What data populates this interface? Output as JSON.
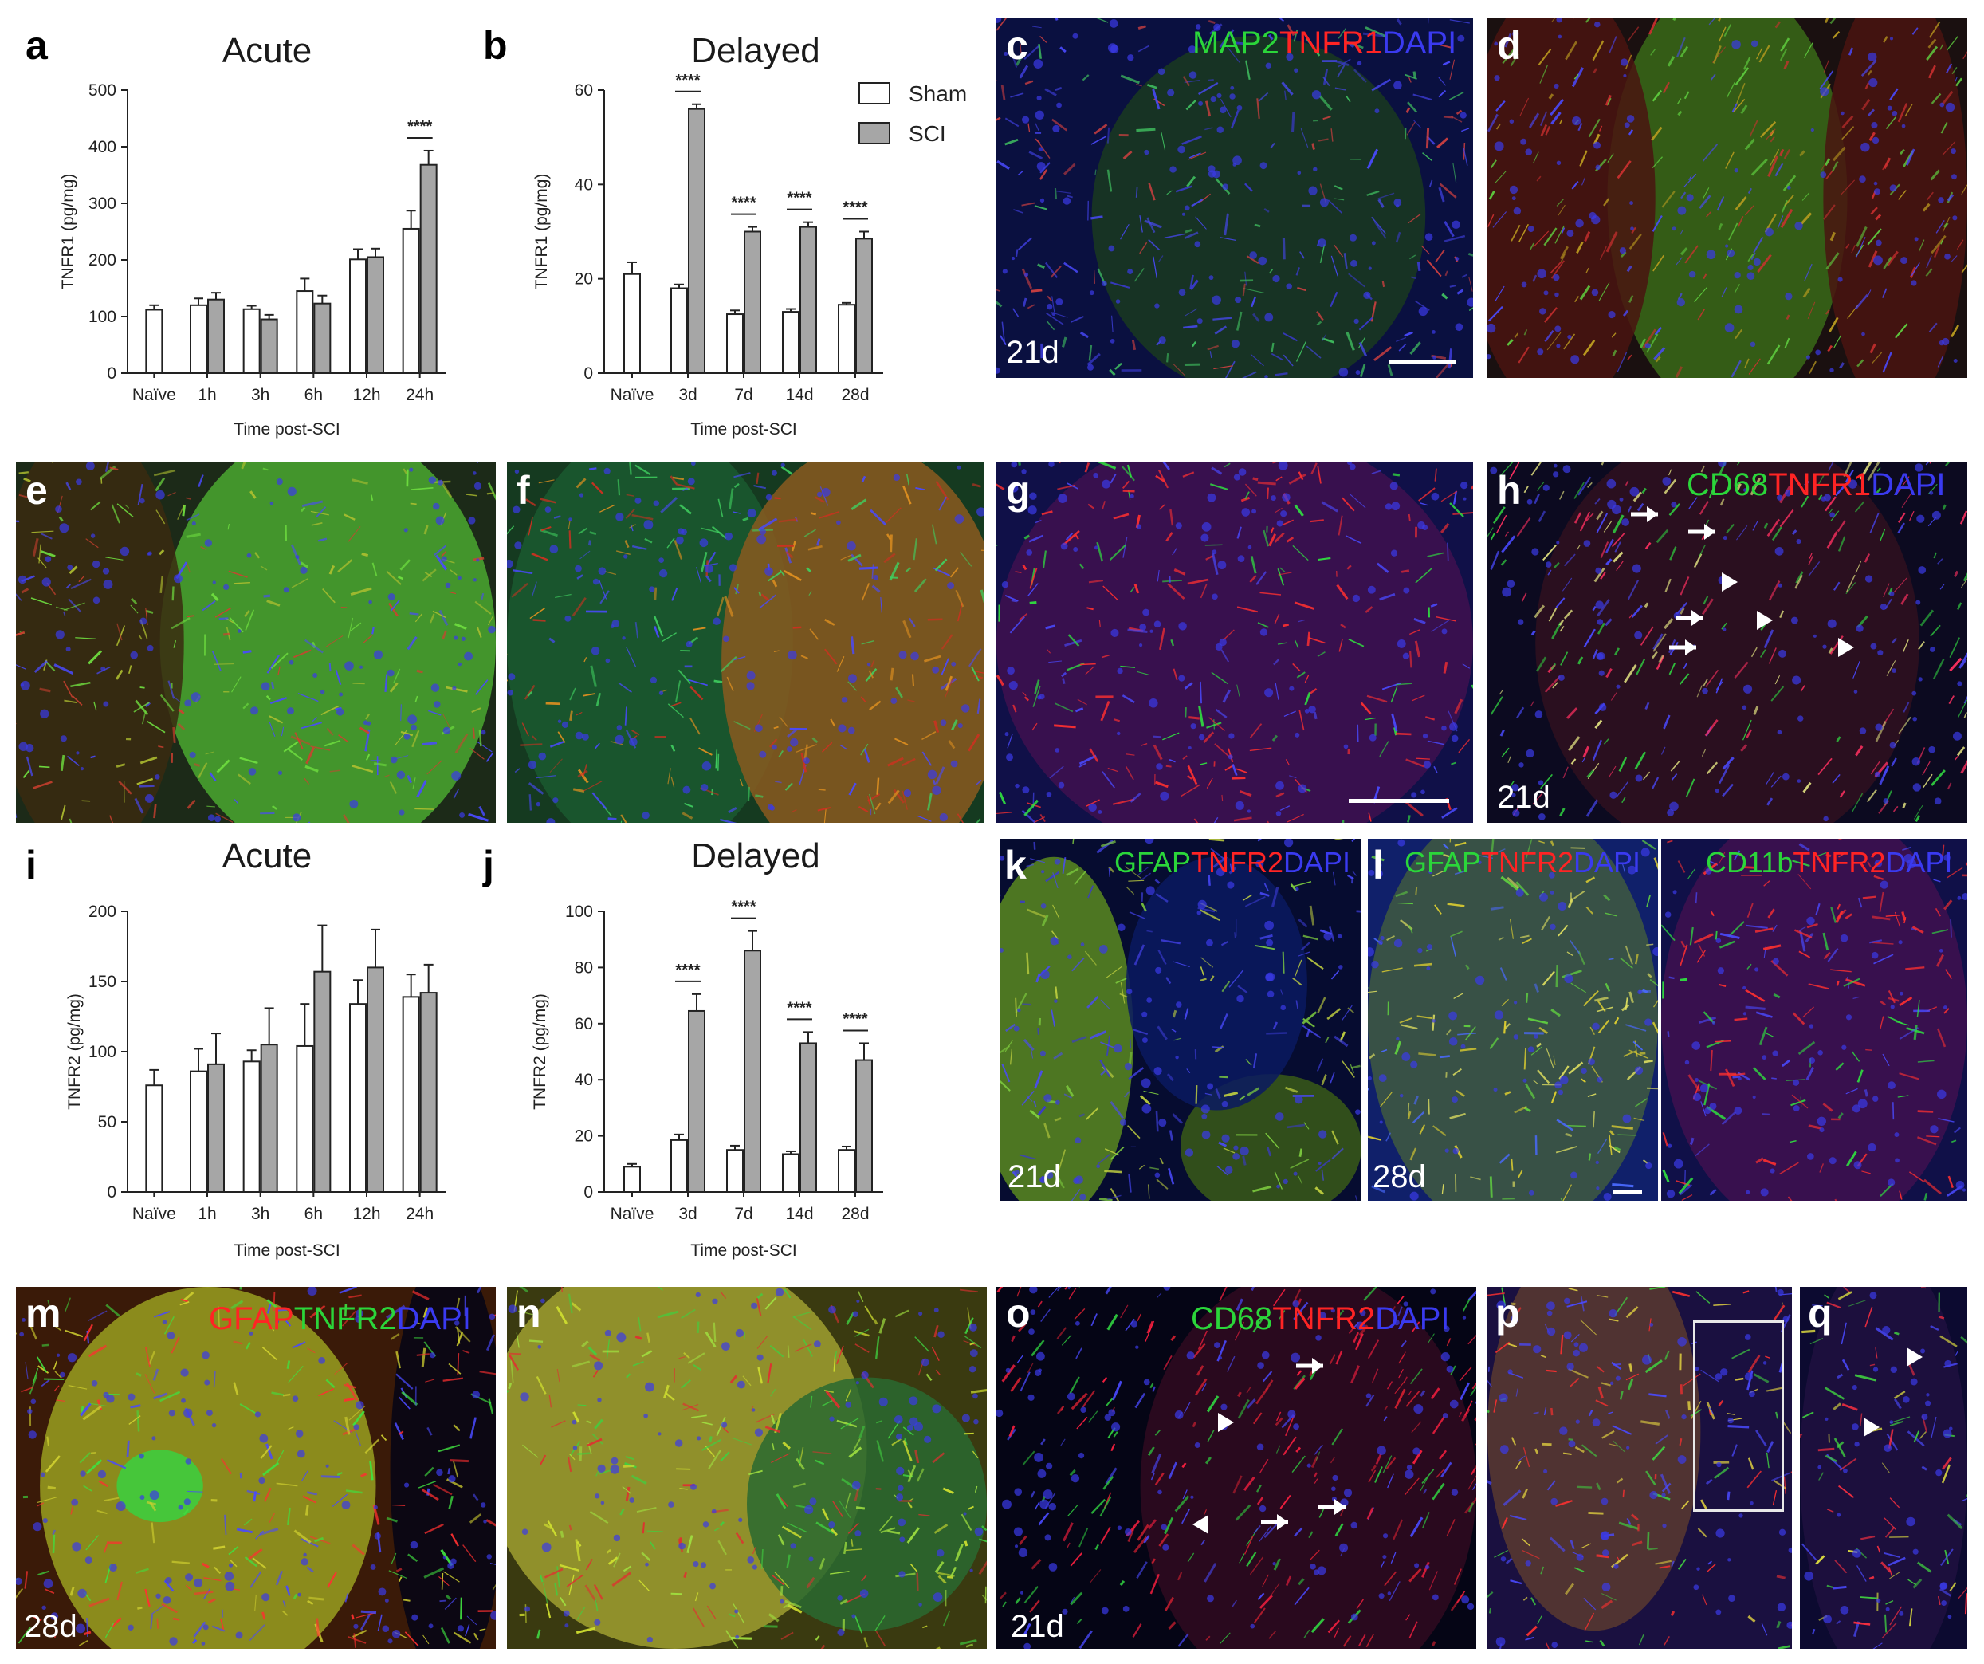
{
  "colors": {
    "sham_fill": "#ffffff",
    "sci_fill": "#a6a6a6",
    "green": "#2bd63a",
    "red": "#ff2424",
    "blue": "#3a3af0",
    "white": "#ffffff"
  },
  "legend": {
    "sham": "Sham",
    "sci": "SCI"
  },
  "chart_data": [
    {
      "panel": "a",
      "type": "bar",
      "title": "Acute",
      "xlabel": "Time post-SCI",
      "ylabel": "TNFR1 (pg/mg)",
      "ylim": [
        0,
        500
      ],
      "yticks": [
        0,
        100,
        200,
        300,
        400,
        500
      ],
      "categories": [
        "Naïve",
        "1h",
        "3h",
        "6h",
        "12h",
        "24h"
      ],
      "series": [
        {
          "name": "Sham",
          "values": [
            112,
            120,
            113,
            145,
            201,
            255
          ],
          "errors": [
            8,
            12,
            6,
            22,
            18,
            32
          ]
        },
        {
          "name": "SCI",
          "values": [
            null,
            130,
            95,
            123,
            205,
            368
          ],
          "errors": [
            null,
            12,
            8,
            14,
            15,
            25
          ]
        }
      ],
      "significance": [
        {
          "category": "24h",
          "label": "****"
        }
      ]
    },
    {
      "panel": "b",
      "type": "bar",
      "title": "Delayed",
      "xlabel": "Time post-SCI",
      "ylabel": "TNFR1 (pg/mg)",
      "ylim": [
        0,
        60
      ],
      "yticks": [
        0,
        20,
        40,
        60
      ],
      "categories": [
        "Naïve",
        "3d",
        "7d",
        "14d",
        "28d"
      ],
      "series": [
        {
          "name": "Sham",
          "values": [
            21,
            18,
            12.5,
            13,
            14.5
          ],
          "errors": [
            2.5,
            0.8,
            0.8,
            0.6,
            0.4
          ]
        },
        {
          "name": "SCI",
          "values": [
            null,
            56,
            30,
            31,
            28.5
          ],
          "errors": [
            null,
            1,
            1,
            1,
            1.5
          ]
        }
      ],
      "significance": [
        {
          "category": "3d",
          "label": "****"
        },
        {
          "category": "7d",
          "label": "****"
        },
        {
          "category": "14d",
          "label": "****"
        },
        {
          "category": "28d",
          "label": "****"
        }
      ]
    },
    {
      "panel": "i",
      "type": "bar",
      "title": "Acute",
      "xlabel": "Time post-SCI",
      "ylabel": "TNFR2 (pg/mg)",
      "ylim": [
        0,
        200
      ],
      "yticks": [
        0,
        50,
        100,
        150,
        200
      ],
      "categories": [
        "Naïve",
        "1h",
        "3h",
        "6h",
        "12h",
        "24h"
      ],
      "series": [
        {
          "name": "Sham",
          "values": [
            76,
            86,
            93,
            104,
            134,
            139
          ],
          "errors": [
            11,
            16,
            8,
            30,
            17,
            16
          ]
        },
        {
          "name": "SCI",
          "values": [
            null,
            91,
            105,
            157,
            160,
            142
          ],
          "errors": [
            null,
            22,
            26,
            33,
            27,
            20
          ]
        }
      ],
      "significance": []
    },
    {
      "panel": "j",
      "type": "bar",
      "title": "Delayed",
      "xlabel": "Time post-SCI",
      "ylabel": "TNFR2 (pg/mg)",
      "ylim": [
        0,
        100
      ],
      "yticks": [
        0,
        20,
        40,
        60,
        80,
        100
      ],
      "categories": [
        "Naïve",
        "3d",
        "7d",
        "14d",
        "28d"
      ],
      "series": [
        {
          "name": "Sham",
          "values": [
            9,
            18.5,
            15,
            13.5,
            15
          ],
          "errors": [
            1,
            2,
            1.5,
            1,
            1.2
          ]
        },
        {
          "name": "SCI",
          "values": [
            null,
            64.5,
            86,
            53,
            47
          ],
          "errors": [
            null,
            6,
            7,
            4,
            6
          ]
        }
      ],
      "significance": [
        {
          "category": "3d",
          "label": "****"
        },
        {
          "category": "7d",
          "label": "****"
        },
        {
          "category": "14d",
          "label": "****"
        },
        {
          "category": "28d",
          "label": "****"
        }
      ]
    }
  ],
  "micrographs": {
    "c": {
      "letter": "c",
      "stain": [
        "MAP2",
        "TNFR1",
        "DAPI"
      ],
      "time": "21d"
    },
    "d": {
      "letter": "d"
    },
    "e": {
      "letter": "e"
    },
    "f": {
      "letter": "f"
    },
    "g": {
      "letter": "g"
    },
    "h": {
      "letter": "h",
      "stain": [
        "CD68",
        "TNFR1",
        "DAPI"
      ],
      "time": "21d"
    },
    "k": {
      "letter": "k",
      "stain": [
        "GFAP",
        "TNFR2",
        "DAPI"
      ],
      "time": "21d"
    },
    "l": {
      "letter": "l",
      "stain": [
        "GFAP",
        "TNFR2",
        "DAPI"
      ],
      "time": "28d"
    },
    "l2": {
      "stain": [
        "CD11b",
        "TNFR2",
        "DAPI"
      ]
    },
    "m": {
      "letter": "m",
      "stain": [
        "GFAP",
        "TNFR2",
        "DAPI"
      ],
      "time": "28d"
    },
    "n": {
      "letter": "n"
    },
    "o": {
      "letter": "o",
      "stain": [
        "CD68",
        "TNFR2",
        "DAPI"
      ],
      "time": "21d"
    },
    "p": {
      "letter": "p"
    },
    "q": {
      "letter": "q"
    }
  }
}
